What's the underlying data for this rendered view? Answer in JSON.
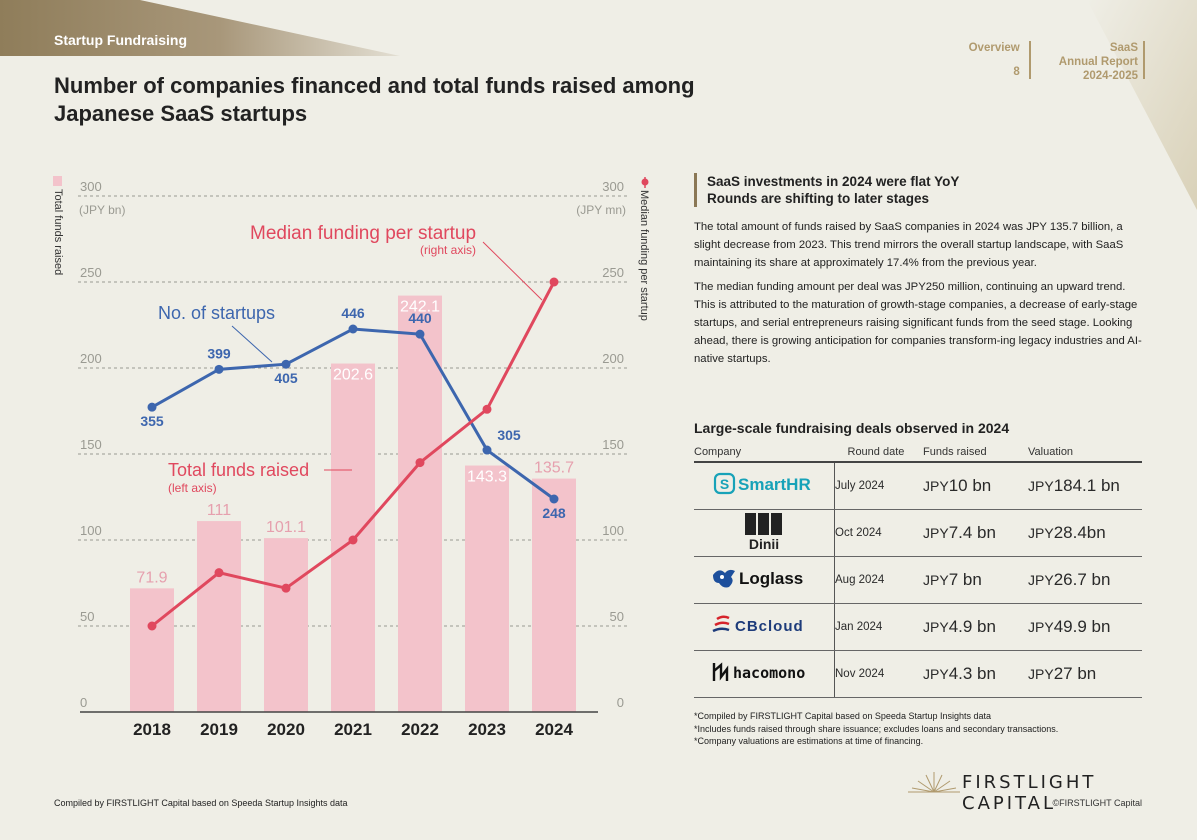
{
  "header": {
    "section_label": "Startup Fundraising",
    "title": "Number of companies financed and total funds raised among Japanese SaaS startups",
    "nav": {
      "overview_label": "Overview",
      "page_number": "8",
      "report_title_lines": [
        "SaaS",
        "Annual Report",
        "2024-2025"
      ]
    }
  },
  "chart_data": {
    "type": "bar",
    "categories": [
      "2018",
      "2019",
      "2020",
      "2021",
      "2022",
      "2023",
      "2024"
    ],
    "series": [
      {
        "name": "Total funds raised",
        "kind": "bar",
        "axis": "left",
        "values": [
          71.9,
          111,
          101.1,
          202.6,
          242.1,
          143.3,
          135.7
        ],
        "color": "#f3c3cb",
        "label_color": "#e6a0ae"
      },
      {
        "name": "No. of startups",
        "kind": "line",
        "axis": "count",
        "values": [
          355,
          399,
          405,
          446,
          440,
          305,
          248
        ],
        "color": "#3d66ae"
      },
      {
        "name": "Median funding per startup",
        "kind": "line",
        "axis": "right",
        "values": [
          50,
          81,
          72,
          100,
          145,
          176,
          250
        ],
        "color": "#e0485e"
      }
    ],
    "ylim": [
      0,
      300
    ],
    "y_ticks": [
      "300",
      "250",
      "200",
      "150",
      "100",
      "50",
      "0"
    ],
    "left_axis_label": "Total funds raised",
    "left_unit": "(JPY bn)",
    "right_axis_label": "Median funding per startup",
    "right_unit": "(JPY mn)",
    "annotations": {
      "median_title": "Median funding per startup",
      "median_sub": "(right axis)",
      "startups_title": "No. of startups",
      "funds_title": "Total funds raised",
      "funds_sub": "(left axis)"
    },
    "grid": true
  },
  "summary": {
    "heading_lines": [
      "SaaS investments in 2024 were flat YoY",
      "Rounds are shifting to later stages"
    ],
    "paragraph1": "The total amount of funds raised by SaaS companies in 2024 was JPY 135.7 billion, a slight decrease from 2023. This trend mirrors the overall startup landscape, with SaaS maintaining its share at approximately 17.4% from the previous year.",
    "paragraph2": "The median funding amount per deal was JPY250 million, continuing an upward trend. This is attributed to the maturation of growth-stage companies, a decrease of early-stage startups, and serial entrepreneurs raising significant funds from the seed stage. Looking ahead, there is growing anticipation for companies transform-ing legacy industries and AI-native startups."
  },
  "deals": {
    "title": "Large-scale fundraising deals observed in 2024",
    "columns": [
      "Company",
      "Round date",
      "Funds raised",
      "Valuation"
    ],
    "rows": [
      {
        "company": "SmartHR",
        "date": "July 2024",
        "funds": "10 bn",
        "valuation": "184.1 bn"
      },
      {
        "company": "Dinii",
        "date": "Oct 2024",
        "funds": "7.4 bn",
        "valuation": "28.4bn"
      },
      {
        "company": "Loglass",
        "date": "Aug 2024",
        "funds": "7 bn",
        "valuation": "26.7 bn"
      },
      {
        "company": "CBcloud",
        "date": "Jan 2024",
        "funds": "4.9 bn",
        "valuation": "49.9 bn"
      },
      {
        "company": "hacomono",
        "date": "Nov 2024",
        "funds": "4.3 bn",
        "valuation": "27 bn"
      }
    ],
    "currency": "JPY"
  },
  "notes": [
    "*Compiled by FIRSTLIGHT Capital based on Speeda Startup Insights data",
    "*Includes funds raised through share issuance; excludes loans and secondary transactions.",
    "*Company valuations are estimations at time of financing."
  ],
  "footer": {
    "source": "Compiled by FIRSTLIGHT Capital based on Speeda Startup Insights data",
    "brand": "FIRSTLIGHT CAPITAL",
    "copyright": "©FIRSTLIGHT Capital"
  },
  "colors": {
    "background": "#efeee6",
    "banner": "#9c8a66",
    "accent_gold": "#b09a6e",
    "bar": "#f3c3cb",
    "line_startups": "#3d66ae",
    "line_median": "#e0485e"
  }
}
